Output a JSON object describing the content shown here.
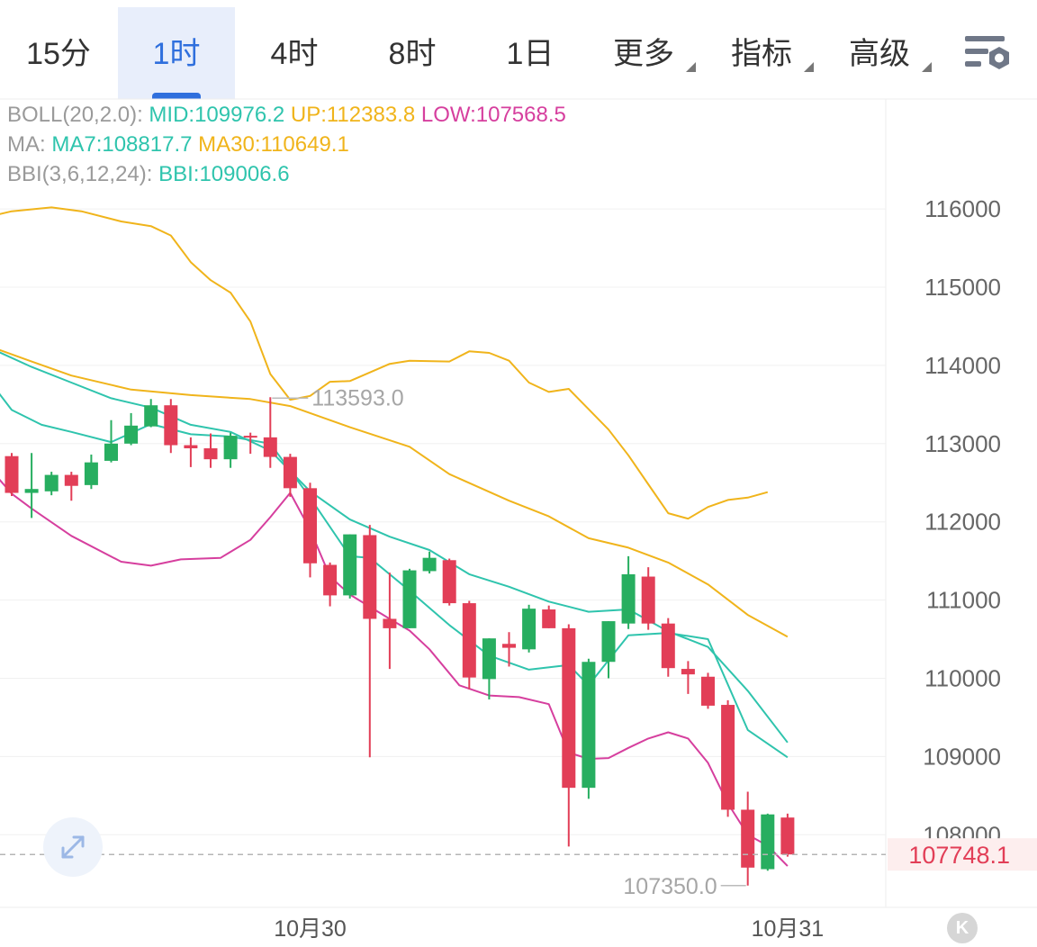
{
  "tabs": [
    {
      "label": "15分",
      "active": false,
      "dropdown": false
    },
    {
      "label": "1时",
      "active": true,
      "dropdown": false
    },
    {
      "label": "4时",
      "active": false,
      "dropdown": false
    },
    {
      "label": "8时",
      "active": false,
      "dropdown": false
    },
    {
      "label": "1日",
      "active": false,
      "dropdown": false
    },
    {
      "label": "更多",
      "active": false,
      "dropdown": true
    },
    {
      "label": "指标",
      "active": false,
      "dropdown": true
    },
    {
      "label": "高级",
      "active": false,
      "dropdown": true
    }
  ],
  "settings_icon": "chart-settings-icon",
  "indicators": {
    "boll": {
      "name": "BOLL(20,2.0):",
      "mid": "MID:109976.2",
      "up": "UP:112383.8",
      "low": "LOW:107568.5"
    },
    "ma": {
      "name": "MA:",
      "ma7": "MA7:108817.7",
      "ma30": "MA30:110649.1"
    },
    "bbi": {
      "name": "BBI(3,6,12,24):",
      "bbi": "BBI:109006.6"
    }
  },
  "colors": {
    "up": "#27ae60",
    "down": "#e23e57",
    "ma7": "#2fc4ad",
    "ma30": "#f0b41b",
    "boll_low": "#d63f9e",
    "accent": "#2f6fdd"
  },
  "chart_data": {
    "type": "candlestick",
    "y_ticks": [
      "116000",
      "115000",
      "114000",
      "113000",
      "112000",
      "111000",
      "110000",
      "109000",
      "108000"
    ],
    "ylim": [
      107000,
      116900
    ],
    "x_labels": [
      "10月30",
      "10月31"
    ],
    "x_label_index": [
      15,
      39
    ],
    "last_price": "107748.1",
    "annotations": {
      "high": "113593.0",
      "high_index": 13,
      "low": "107350.0",
      "low_index": 37
    },
    "candles": [
      {
        "o": 112840,
        "h": 112880,
        "c": 112370,
        "l": 112330
      },
      {
        "o": 112370,
        "h": 112880,
        "c": 112420,
        "l": 112050
      },
      {
        "o": 112390,
        "h": 112640,
        "c": 112600,
        "l": 112340
      },
      {
        "o": 112600,
        "h": 112640,
        "c": 112460,
        "l": 112270
      },
      {
        "o": 112470,
        "h": 112860,
        "c": 112760,
        "l": 112420
      },
      {
        "o": 112780,
        "h": 113300,
        "c": 113000,
        "l": 112760
      },
      {
        "o": 113000,
        "h": 113390,
        "c": 113230,
        "l": 112980
      },
      {
        "o": 113220,
        "h": 113570,
        "c": 113490,
        "l": 113210
      },
      {
        "o": 113490,
        "h": 113570,
        "c": 112980,
        "l": 112880
      },
      {
        "o": 112980,
        "h": 113080,
        "c": 112940,
        "l": 112700
      },
      {
        "o": 112940,
        "h": 113130,
        "c": 112800,
        "l": 112690
      },
      {
        "o": 112800,
        "h": 113140,
        "c": 113100,
        "l": 112690
      },
      {
        "o": 113100,
        "h": 113140,
        "c": 113080,
        "l": 112870
      },
      {
        "o": 113080,
        "h": 113593,
        "c": 112830,
        "l": 112690
      },
      {
        "o": 112830,
        "h": 112870,
        "c": 112430,
        "l": 112320
      },
      {
        "o": 112430,
        "h": 112500,
        "c": 111470,
        "l": 111290
      },
      {
        "o": 111450,
        "h": 111480,
        "c": 111060,
        "l": 110920
      },
      {
        "o": 111060,
        "h": 111840,
        "c": 111840,
        "l": 111020
      },
      {
        "o": 111830,
        "h": 111960,
        "c": 110760,
        "l": 108990
      },
      {
        "o": 110760,
        "h": 111350,
        "c": 110640,
        "l": 110120
      },
      {
        "o": 110640,
        "h": 111400,
        "c": 111380,
        "l": 110640
      },
      {
        "o": 111370,
        "h": 111620,
        "c": 111540,
        "l": 111340
      },
      {
        "o": 111510,
        "h": 111530,
        "c": 110960,
        "l": 110930
      },
      {
        "o": 110960,
        "h": 110990,
        "c": 110010,
        "l": 109860
      },
      {
        "o": 109990,
        "h": 110510,
        "c": 110510,
        "l": 109730
      },
      {
        "o": 110440,
        "h": 110590,
        "c": 110390,
        "l": 110150
      },
      {
        "o": 110370,
        "h": 110940,
        "c": 110890,
        "l": 110330
      },
      {
        "o": 110880,
        "h": 110930,
        "c": 110640,
        "l": 110640
      },
      {
        "o": 110640,
        "h": 110690,
        "c": 108600,
        "l": 107850
      },
      {
        "o": 108600,
        "h": 110250,
        "c": 110210,
        "l": 108460
      },
      {
        "o": 110210,
        "h": 110730,
        "c": 110730,
        "l": 110000
      },
      {
        "o": 110700,
        "h": 111560,
        "c": 111330,
        "l": 110630
      },
      {
        "o": 111300,
        "h": 111420,
        "c": 110700,
        "l": 110620
      },
      {
        "o": 110700,
        "h": 110770,
        "c": 110130,
        "l": 110020
      },
      {
        "o": 110120,
        "h": 110220,
        "c": 110050,
        "l": 109800
      },
      {
        "o": 110020,
        "h": 110070,
        "c": 109650,
        "l": 109610
      },
      {
        "o": 109660,
        "h": 109720,
        "c": 108320,
        "l": 108230
      },
      {
        "o": 108320,
        "h": 108550,
        "c": 107580,
        "l": 107350
      },
      {
        "o": 107560,
        "h": 108270,
        "c": 108260,
        "l": 107540
      },
      {
        "o": 108220,
        "h": 108270,
        "c": 107748,
        "l": 107720
      }
    ],
    "ma30_curve": [
      {
        "i": -1.5,
        "v": 114280
      },
      {
        "i": 1,
        "v": 114050
      },
      {
        "i": 3,
        "v": 113870
      },
      {
        "i": 6,
        "v": 113690
      },
      {
        "i": 9,
        "v": 113620
      },
      {
        "i": 12,
        "v": 113570
      },
      {
        "i": 14,
        "v": 113480
      },
      {
        "i": 17,
        "v": 113210
      },
      {
        "i": 20,
        "v": 112960
      },
      {
        "i": 22,
        "v": 112610
      },
      {
        "i": 25,
        "v": 112270
      },
      {
        "i": 27,
        "v": 112070
      },
      {
        "i": 29,
        "v": 111790
      },
      {
        "i": 31,
        "v": 111670
      },
      {
        "i": 33,
        "v": 111480
      },
      {
        "i": 35,
        "v": 111200
      },
      {
        "i": 37,
        "v": 110810
      },
      {
        "i": 39,
        "v": 110530
      }
    ],
    "ma7_curve": [
      {
        "i": -1.5,
        "v": 114270
      },
      {
        "i": 1,
        "v": 113980
      },
      {
        "i": 3,
        "v": 113780
      },
      {
        "i": 5,
        "v": 113580
      },
      {
        "i": 7,
        "v": 113460
      },
      {
        "i": 9,
        "v": 113240
      },
      {
        "i": 11,
        "v": 113150
      },
      {
        "i": 13,
        "v": 112910
      },
      {
        "i": 15,
        "v": 112390
      },
      {
        "i": 17,
        "v": 112030
      },
      {
        "i": 19,
        "v": 111810
      },
      {
        "i": 21,
        "v": 111640
      },
      {
        "i": 23,
        "v": 111330
      },
      {
        "i": 25,
        "v": 111170
      },
      {
        "i": 27,
        "v": 110980
      },
      {
        "i": 29,
        "v": 110850
      },
      {
        "i": 31,
        "v": 110880
      },
      {
        "i": 33,
        "v": 110600
      },
      {
        "i": 35,
        "v": 110400
      },
      {
        "i": 37,
        "v": 109840
      },
      {
        "i": 39,
        "v": 109180
      }
    ],
    "bbi_curve": [
      {
        "i": -1.5,
        "v": 113930
      },
      {
        "i": 0,
        "v": 113430
      },
      {
        "i": 1.5,
        "v": 113240
      },
      {
        "i": 3,
        "v": 113150
      },
      {
        "i": 5,
        "v": 113020
      },
      {
        "i": 7,
        "v": 113250
      },
      {
        "i": 9,
        "v": 113120
      },
      {
        "i": 11,
        "v": 113090
      },
      {
        "i": 13,
        "v": 113000
      },
      {
        "i": 15,
        "v": 112310
      },
      {
        "i": 17,
        "v": 111560
      },
      {
        "i": 18,
        "v": 111540
      },
      {
        "i": 20,
        "v": 111120
      },
      {
        "i": 22,
        "v": 110680
      },
      {
        "i": 24,
        "v": 110290
      },
      {
        "i": 26,
        "v": 110110
      },
      {
        "i": 28,
        "v": 110170
      },
      {
        "i": 29,
        "v": 109910
      },
      {
        "i": 31,
        "v": 110550
      },
      {
        "i": 33,
        "v": 110580
      },
      {
        "i": 35,
        "v": 110500
      },
      {
        "i": 37,
        "v": 109340
      },
      {
        "i": 39,
        "v": 108990
      }
    ],
    "boll_up_curve": [
      {
        "i": -1.5,
        "v": 115880
      },
      {
        "i": 0,
        "v": 115970
      },
      {
        "i": 2,
        "v": 116020
      },
      {
        "i": 3.5,
        "v": 115970
      },
      {
        "i": 5.5,
        "v": 115840
      },
      {
        "i": 7,
        "v": 115780
      },
      {
        "i": 8,
        "v": 115660
      },
      {
        "i": 9,
        "v": 115320
      },
      {
        "i": 10,
        "v": 115090
      },
      {
        "i": 11,
        "v": 114930
      },
      {
        "i": 12,
        "v": 114560
      },
      {
        "i": 13,
        "v": 113890
      },
      {
        "i": 14,
        "v": 113560
      },
      {
        "i": 15,
        "v": 113610
      },
      {
        "i": 16,
        "v": 113790
      },
      {
        "i": 17,
        "v": 113800
      },
      {
        "i": 19,
        "v": 114020
      },
      {
        "i": 20,
        "v": 114060
      },
      {
        "i": 22,
        "v": 114050
      },
      {
        "i": 23,
        "v": 114180
      },
      {
        "i": 24,
        "v": 114160
      },
      {
        "i": 25,
        "v": 114060
      },
      {
        "i": 26,
        "v": 113780
      },
      {
        "i": 27,
        "v": 113660
      },
      {
        "i": 28,
        "v": 113700
      },
      {
        "i": 29,
        "v": 113440
      },
      {
        "i": 30,
        "v": 113180
      },
      {
        "i": 31,
        "v": 112850
      },
      {
        "i": 32,
        "v": 112480
      },
      {
        "i": 33,
        "v": 112110
      },
      {
        "i": 34,
        "v": 112040
      },
      {
        "i": 35,
        "v": 112190
      },
      {
        "i": 36,
        "v": 112280
      },
      {
        "i": 37,
        "v": 112310
      },
      {
        "i": 38,
        "v": 112380
      }
    ],
    "boll_low_curve": [
      {
        "i": -1.5,
        "v": 112800
      },
      {
        "i": 0,
        "v": 112360
      },
      {
        "i": 1,
        "v": 112170
      },
      {
        "i": 3,
        "v": 111820
      },
      {
        "i": 5.5,
        "v": 111490
      },
      {
        "i": 7,
        "v": 111440
      },
      {
        "i": 8.5,
        "v": 111520
      },
      {
        "i": 10.5,
        "v": 111540
      },
      {
        "i": 12,
        "v": 111770
      },
      {
        "i": 13,
        "v": 112060
      },
      {
        "i": 14,
        "v": 112370
      },
      {
        "i": 15,
        "v": 111900
      },
      {
        "i": 16,
        "v": 111300
      },
      {
        "i": 17,
        "v": 111070
      },
      {
        "i": 19,
        "v": 110760
      },
      {
        "i": 20,
        "v": 110610
      },
      {
        "i": 21,
        "v": 110370
      },
      {
        "i": 22.5,
        "v": 109910
      },
      {
        "i": 24,
        "v": 109780
      },
      {
        "i": 25.5,
        "v": 109760
      },
      {
        "i": 27,
        "v": 109670
      },
      {
        "i": 28,
        "v": 109050
      },
      {
        "i": 29,
        "v": 108970
      },
      {
        "i": 30,
        "v": 108980
      },
      {
        "i": 31,
        "v": 109110
      },
      {
        "i": 32,
        "v": 109230
      },
      {
        "i": 33,
        "v": 109310
      },
      {
        "i": 34,
        "v": 109230
      },
      {
        "i": 35,
        "v": 108920
      },
      {
        "i": 36,
        "v": 108400
      },
      {
        "i": 37,
        "v": 108000
      },
      {
        "i": 38,
        "v": 107860
      },
      {
        "i": 39,
        "v": 107600
      }
    ]
  }
}
